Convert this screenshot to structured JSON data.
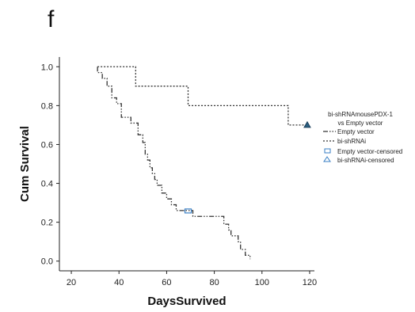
{
  "panel_label": "f",
  "chart_data": {
    "type": "line",
    "subtype": "kaplan-meier",
    "xlabel": "DaysSurvived",
    "ylabel": "Cum Survival",
    "xlim": [
      15,
      122
    ],
    "ylim": [
      -0.05,
      1.05
    ],
    "x_ticks": [
      20,
      40,
      60,
      80,
      100,
      120
    ],
    "y_ticks": [
      0.0,
      0.2,
      0.4,
      0.6,
      0.8,
      1.0
    ],
    "x_tick_labels": [
      "20",
      "40",
      "60",
      "80",
      "100",
      "120"
    ],
    "y_tick_labels": [
      "0.0",
      "0.2",
      "0.4",
      "0.6",
      "0.8",
      "1.0"
    ],
    "grid": false,
    "legend": {
      "title": "bi-shRNAmousePDX-1\nvs Empty vector",
      "position": "right",
      "entries": [
        {
          "label": "Empty vector",
          "kind": "line",
          "color": "#333333"
        },
        {
          "label": "bi-shRNAi",
          "kind": "line",
          "color": "#333333"
        },
        {
          "label": "Empty vector-censored",
          "kind": "square",
          "color": "#3a7fc4"
        },
        {
          "label": "bi-shRNAi-censored",
          "kind": "triangle",
          "color": "#3a7fc4"
        }
      ]
    },
    "series": [
      {
        "name": "Empty vector",
        "color": "#333333",
        "dash": "6,2,1.5,2,1.5,2",
        "steps": [
          [
            31,
            1.0
          ],
          [
            31,
            0.97
          ],
          [
            33,
            0.94
          ],
          [
            35,
            0.9
          ],
          [
            37,
            0.84
          ],
          [
            39,
            0.81
          ],
          [
            41,
            0.74
          ],
          [
            45,
            0.71
          ],
          [
            48,
            0.65
          ],
          [
            50,
            0.61
          ],
          [
            51,
            0.55
          ],
          [
            52,
            0.52
          ],
          [
            53,
            0.48
          ],
          [
            54,
            0.45
          ],
          [
            55,
            0.42
          ],
          [
            56,
            0.39
          ],
          [
            58,
            0.35
          ],
          [
            60,
            0.32
          ],
          [
            62,
            0.29
          ],
          [
            64,
            0.26
          ],
          [
            71,
            0.23
          ],
          [
            84,
            0.19
          ],
          [
            86,
            0.16
          ],
          [
            87,
            0.13
          ],
          [
            90,
            0.1
          ],
          [
            91,
            0.06
          ],
          [
            93,
            0.03
          ],
          [
            95,
            0.01
          ]
        ],
        "end_x": 95,
        "censored": [
          {
            "x": 69,
            "y": 0.258
          }
        ]
      },
      {
        "name": "bi-shRNAi",
        "color": "#333333",
        "dash": "2,2",
        "steps": [
          [
            31,
            1.0
          ],
          [
            40,
            1.0
          ],
          [
            47,
            0.9
          ],
          [
            69,
            0.8
          ],
          [
            111,
            0.7
          ]
        ],
        "end_x": 119,
        "censored": [
          {
            "x": 119,
            "y": 0.7
          }
        ]
      }
    ]
  }
}
